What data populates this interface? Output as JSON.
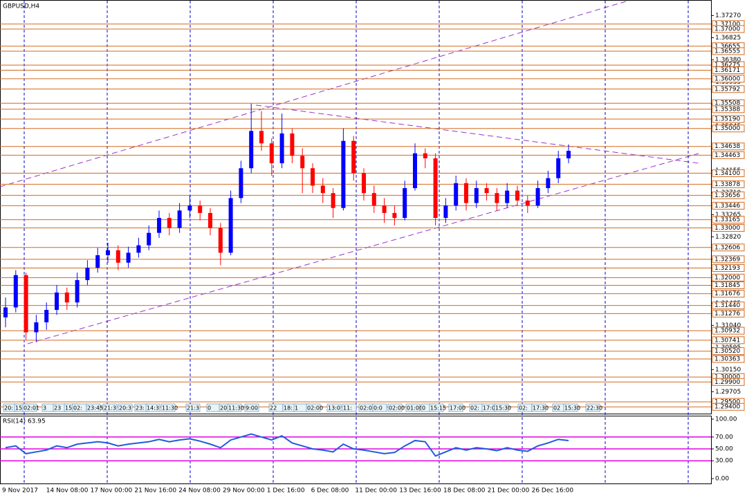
{
  "chart_data": {
    "type": "candlestick",
    "title": "GBPUSD,H4",
    "up_color": "#0000ff",
    "down_color": "#ff0000",
    "level_color": "#d2691e",
    "ylim": [
      1.2925,
      1.3757
    ],
    "yticks": [
      {
        "value": 1.3727,
        "label": "1.37270"
      },
      {
        "value": 1.36825,
        "label": "1.36825"
      },
      {
        "value": 1.3638,
        "label": "1.36380"
      },
      {
        "value": 1.35935,
        "label": "1.35935"
      },
      {
        "value": 1.3549,
        "label": "1.35490"
      },
      {
        "value": 1.35045,
        "label": "1.35045"
      },
      {
        "value": 1.346,
        "label": "1.34600"
      },
      {
        "value": 1.34155,
        "label": "1.34155"
      },
      {
        "value": 1.3371,
        "label": "1.33710"
      },
      {
        "value": 1.33265,
        "label": "1.33265"
      },
      {
        "value": 1.3282,
        "label": "1.32820"
      },
      {
        "value": 1.32375,
        "label": "1.32375"
      },
      {
        "value": 1.3193,
        "label": "1.31930"
      },
      {
        "value": 1.31485,
        "label": "1.31485"
      },
      {
        "value": 1.3104,
        "label": "1.31040"
      },
      {
        "value": 1.30595,
        "label": "1.30595"
      },
      {
        "value": 1.3015,
        "label": "1.30150"
      },
      {
        "value": 1.29705,
        "label": "1.29705"
      }
    ],
    "levels": [
      {
        "value": 1.371,
        "label": "1.37100"
      },
      {
        "value": 1.37,
        "label": "1.37000"
      },
      {
        "value": 1.36655,
        "label": "1.36655"
      },
      {
        "value": 1.36555,
        "label": "1.36555"
      },
      {
        "value": 1.36275,
        "label": "1.36275"
      },
      {
        "value": 1.36171,
        "label": "1.36171"
      },
      {
        "value": 1.36,
        "label": "1.36000"
      },
      {
        "value": 1.35792,
        "label": "1.35792"
      },
      {
        "value": 1.35508,
        "label": "1.35508"
      },
      {
        "value": 1.35388,
        "label": "1.35388"
      },
      {
        "value": 1.3519,
        "label": "1.35190"
      },
      {
        "value": 1.35,
        "label": "1.35000"
      },
      {
        "value": 1.34638,
        "label": "1.34638"
      },
      {
        "value": 1.34463,
        "label": "1.34463"
      },
      {
        "value": 1.341,
        "label": "1.34100"
      },
      {
        "value": 1.33878,
        "label": "1.33878"
      },
      {
        "value": 1.33656,
        "label": "1.33656"
      },
      {
        "value": 1.33446,
        "label": "1.33446"
      },
      {
        "value": 1.33165,
        "label": "1.33165"
      },
      {
        "value": 1.33,
        "label": "1.33000"
      },
      {
        "value": 1.32606,
        "label": "1.32606"
      },
      {
        "value": 1.32369,
        "label": "1.32369"
      },
      {
        "value": 1.32193,
        "label": "1.32193"
      },
      {
        "value": 1.32,
        "label": "1.32000"
      },
      {
        "value": 1.31845,
        "label": "1.31845"
      },
      {
        "value": 1.31676,
        "label": "1.31676"
      },
      {
        "value": 1.3144,
        "label": "1.31440"
      },
      {
        "value": 1.31276,
        "label": "1.31276"
      },
      {
        "value": 1.30932,
        "label": "1.30932"
      },
      {
        "value": 1.30741,
        "label": "1.30741"
      },
      {
        "value": 1.3052,
        "label": "1.30520"
      },
      {
        "value": 1.30363,
        "label": "1.30363"
      },
      {
        "value": 1.3,
        "label": "1.30000"
      },
      {
        "value": 1.299,
        "label": "1.29900"
      },
      {
        "value": 1.295,
        "label": "1.29500"
      },
      {
        "value": 1.294,
        "label": "1.29400"
      }
    ],
    "open": [
      1.312,
      1.314,
      1.3205,
      1.309,
      1.311,
      1.3135,
      1.317,
      1.315,
      1.3195,
      1.322,
      1.3245,
      1.3255,
      1.323,
      1.325,
      1.3265,
      1.329,
      1.332,
      1.33,
      1.3335,
      1.3345,
      1.333,
      1.33,
      1.325,
      1.336,
      1.342,
      1.3495,
      1.347,
      1.343,
      1.349,
      1.3445,
      1.342,
      1.3385,
      1.337,
      1.334,
      1.3475,
      1.341,
      1.337,
      1.3345,
      1.333,
      1.332,
      1.338,
      1.345,
      1.344,
      1.332,
      1.3345,
      1.339,
      1.335,
      1.338,
      1.337,
      1.335,
      1.3375,
      1.3355,
      1.3345,
      1.338,
      1.34,
      1.344
    ],
    "high": [
      1.316,
      1.3215,
      1.321,
      1.3125,
      1.315,
      1.3185,
      1.318,
      1.321,
      1.3235,
      1.326,
      1.327,
      1.3265,
      1.3262,
      1.328,
      1.3305,
      1.3335,
      1.333,
      1.335,
      1.3365,
      1.3355,
      1.334,
      1.331,
      1.3375,
      1.3435,
      1.355,
      1.3535,
      1.348,
      1.353,
      1.35,
      1.346,
      1.343,
      1.34,
      1.338,
      1.35,
      1.3485,
      1.342,
      1.3385,
      1.336,
      1.3345,
      1.3395,
      1.347,
      1.346,
      1.345,
      1.336,
      1.3405,
      1.34,
      1.3395,
      1.339,
      1.338,
      1.339,
      1.3385,
      1.3365,
      1.3395,
      1.3415,
      1.3455,
      1.3468
    ],
    "low": [
      1.31,
      1.313,
      1.3075,
      1.307,
      1.3095,
      1.3125,
      1.3135,
      1.314,
      1.3185,
      1.321,
      1.323,
      1.3215,
      1.322,
      1.324,
      1.3255,
      1.328,
      1.3285,
      1.329,
      1.332,
      1.3315,
      1.3285,
      1.3225,
      1.3245,
      1.335,
      1.341,
      1.3455,
      1.3405,
      1.342,
      1.343,
      1.337,
      1.337,
      1.335,
      1.332,
      1.3335,
      1.3395,
      1.3355,
      1.333,
      1.331,
      1.3305,
      1.3315,
      1.3375,
      1.342,
      1.3305,
      1.331,
      1.3335,
      1.3335,
      1.334,
      1.3355,
      1.3335,
      1.334,
      1.3345,
      1.333,
      1.334,
      1.337,
      1.339,
      1.343
    ],
    "close": [
      1.314,
      1.3205,
      1.309,
      1.311,
      1.3135,
      1.317,
      1.315,
      1.3195,
      1.322,
      1.3245,
      1.3255,
      1.323,
      1.325,
      1.3265,
      1.329,
      1.332,
      1.33,
      1.3335,
      1.3345,
      1.333,
      1.33,
      1.325,
      1.336,
      1.342,
      1.3495,
      1.347,
      1.343,
      1.349,
      1.3445,
      1.342,
      1.3385,
      1.337,
      1.334,
      1.3475,
      1.341,
      1.337,
      1.3345,
      1.333,
      1.332,
      1.338,
      1.345,
      1.344,
      1.332,
      1.3345,
      1.339,
      1.335,
      1.338,
      1.337,
      1.335,
      1.3375,
      1.3355,
      1.3345,
      1.338,
      1.34,
      1.344,
      1.3455
    ],
    "x_labels": [
      "9 Nov 2017",
      "14 Nov 08:00",
      "17 Nov 00:00",
      "21 Nov 16:00",
      "24 Nov 08:00",
      "29 Nov 00:00",
      "1 Dec 16:00",
      "6 Dec 08:00",
      "11 Dec 00:00",
      "13 Dec 16:00",
      "18 Dec 08:00",
      "21 Dec 00:00",
      "26 Dec 16:00"
    ],
    "time_tags": [
      "20:",
      "15",
      "02:01",
      "3",
      "23",
      "15",
      "02:",
      "23:45",
      "21:3",
      "20:3",
      "23:",
      "14:3",
      "11:30",
      "21:3",
      "0",
      "20",
      "11:30",
      "9:00",
      "22",
      "18:",
      "1",
      "02:00",
      "13:0",
      "11:",
      "02:01",
      "0:0",
      "02:00",
      "01:00",
      "0",
      "15:15",
      "17:00",
      "02:",
      "17:0",
      "15:30",
      "02:",
      "17:30",
      "02",
      "15:30",
      "22:30"
    ],
    "rsi": {
      "label": "RSI(14) 63.95",
      "color": "#1e5adc",
      "level_color": "#e000e0",
      "ylim": [
        0,
        100
      ],
      "yticks": [
        {
          "value": 100,
          "label": "100.00"
        },
        {
          "value": 70,
          "label": "70.00"
        },
        {
          "value": 50,
          "label": "50.00"
        },
        {
          "value": 30,
          "label": "30.00"
        },
        {
          "value": 0,
          "label": "0.00"
        }
      ],
      "levels": [
        70,
        50,
        30
      ],
      "values": [
        52,
        55,
        42,
        45,
        48,
        55,
        52,
        58,
        60,
        62,
        60,
        55,
        58,
        60,
        62,
        66,
        62,
        65,
        67,
        63,
        58,
        52,
        65,
        70,
        75,
        70,
        65,
        72,
        60,
        55,
        50,
        48,
        45,
        58,
        50,
        48,
        45,
        42,
        44,
        55,
        64,
        62,
        38,
        45,
        52,
        48,
        52,
        50,
        47,
        52,
        48,
        46,
        55,
        60,
        66,
        64
      ]
    }
  }
}
